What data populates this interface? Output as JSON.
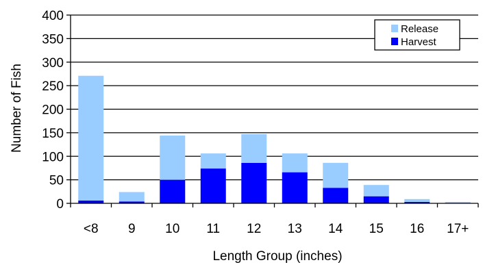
{
  "chart_data": {
    "type": "bar",
    "stacked": true,
    "title": "",
    "xlabel": "Length Group (inches)",
    "ylabel": "Number of Fish",
    "categories": [
      "<8",
      "9",
      "10",
      "11",
      "12",
      "13",
      "14",
      "15",
      "16",
      "17+"
    ],
    "ylim": [
      0,
      400
    ],
    "yticks": [
      0,
      50,
      100,
      150,
      200,
      250,
      300,
      350,
      400
    ],
    "grid": true,
    "legend_position": "top-right",
    "series": [
      {
        "name": "Harvest",
        "color": "#0000ff",
        "values": [
          6,
          4,
          50,
          74,
          86,
          66,
          33,
          15,
          3,
          1
        ]
      },
      {
        "name": "Release",
        "color": "#99ccff",
        "values": [
          265,
          20,
          94,
          32,
          61,
          40,
          53,
          24,
          6,
          2
        ]
      }
    ],
    "legend_order": [
      "Release",
      "Harvest"
    ]
  }
}
